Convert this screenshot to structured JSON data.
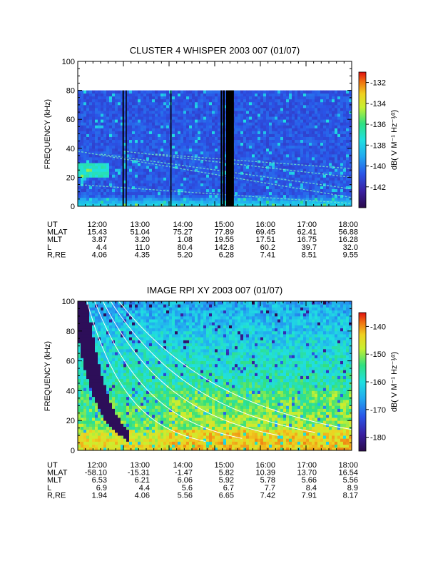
{
  "colors": {
    "background": "#ffffff",
    "axis": "#000000",
    "data_gap": "#000000",
    "colorscale": [
      "#2a0a4a",
      "#3a1fa0",
      "#2a55e8",
      "#22aaf0",
      "#20e0e0",
      "#30e080",
      "#c8f030",
      "#f0d020",
      "#f07010",
      "#e01010"
    ]
  },
  "chart_data": [
    {
      "type": "heatmap",
      "title": "CLUSTER 4 WHISPER 2003 007 (01/07)",
      "xlabel": "",
      "ylabel": "FREQUENCY (kHz)",
      "x_range": [
        "12:00",
        "18:00"
      ],
      "xlim_hours": [
        12,
        18
      ],
      "ylim": [
        0,
        100
      ],
      "y_ticks": [
        0,
        20,
        40,
        60,
        80,
        100
      ],
      "y_tick_labels": [
        "0",
        "20",
        "40",
        "60",
        "80",
        "100"
      ],
      "x_tick_labels": [
        "12:00",
        "13:00",
        "14:00",
        "15:00",
        "16:00",
        "17:00",
        "18:00"
      ],
      "data_max_frequency": 80,
      "colorbar": {
        "label": "dB( V M⁻¹ Hz⁻¹⁄²)",
        "range": [
          -144,
          -131
        ],
        "ticks": [
          -132,
          -134,
          -136,
          -138,
          -140,
          -142
        ],
        "tick_labels": [
          "-132",
          "-134",
          "-136",
          "-138",
          "-140",
          "-142"
        ]
      },
      "data_gaps_hours": [
        [
          12.98,
          13.01
        ],
        [
          13.05,
          13.07
        ],
        [
          14.03,
          14.05
        ],
        [
          15.13,
          15.16
        ],
        [
          15.18,
          15.22
        ],
        [
          15.25,
          15.42
        ]
      ],
      "emission_lines": [
        {
          "from": [
            12.0,
            15
          ],
          "to": [
            18.0,
            2
          ]
        },
        {
          "from": [
            12.0,
            38
          ],
          "to": [
            18.0,
            6
          ]
        },
        {
          "from": [
            12.5,
            36
          ],
          "to": [
            18.0,
            12
          ]
        },
        {
          "from": [
            13.0,
            38
          ],
          "to": [
            18.0,
            20
          ]
        },
        {
          "from": [
            13.7,
            36
          ],
          "to": [
            18.0,
            26
          ]
        }
      ],
      "ephemeris": {
        "row_labels": [
          "UT",
          "MLAT",
          "MLT",
          "L",
          "R,RE"
        ],
        "columns": [
          [
            "12:00",
            "15.43",
            "3.87",
            "4.4",
            "4.06"
          ],
          [
            "13:00",
            "51.04",
            "3.20",
            "11.0",
            "4.35"
          ],
          [
            "14:00",
            "75.27",
            "1.08",
            "80.4",
            "5.20"
          ],
          [
            "15:00",
            "77.89",
            "19.55",
            "142.8",
            "6.28"
          ],
          [
            "16:00",
            "69.45",
            "17.51",
            "60.2",
            "7.41"
          ],
          [
            "17:00",
            "62.41",
            "16.75",
            "39.7",
            "8.51"
          ],
          [
            "18:00",
            "56.88",
            "16.28",
            "32.0",
            "9.55"
          ]
        ]
      }
    },
    {
      "type": "heatmap",
      "title": "IMAGE RPI XY 2003 007 (01/07)",
      "xlabel": "",
      "ylabel": "FREQUENCY (kHz)",
      "x_range": [
        "12:00",
        "18:00"
      ],
      "xlim_hours": [
        12,
        18
      ],
      "ylim": [
        0,
        100
      ],
      "y_ticks": [
        0,
        20,
        40,
        60,
        80,
        100
      ],
      "y_tick_labels": [
        "0",
        "20",
        "40",
        "60",
        "80",
        "100"
      ],
      "x_tick_labels": [
        "12:00",
        "13:00",
        "14:00",
        "15:00",
        "16:00",
        "17:00",
        "18:00"
      ],
      "data_max_frequency": 100,
      "colorbar": {
        "label": "dB( V M⁻¹ Hz⁻¹⁄²)",
        "range": [
          -185,
          -135
        ],
        "ticks": [
          -140,
          -150,
          -160,
          -170,
          -180
        ],
        "tick_labels": [
          "-140",
          "-150",
          "-160",
          "-170",
          "-180"
        ]
      },
      "white_curves": [
        {
          "start": [
            12.2,
            100
          ],
          "end": [
            14.8,
            6
          ]
        },
        {
          "start": [
            12.37,
            100
          ],
          "end": [
            15.6,
            8
          ]
        },
        {
          "start": [
            12.55,
            100
          ],
          "end": [
            16.4,
            10
          ]
        },
        {
          "start": [
            12.72,
            100
          ],
          "end": [
            17.2,
            12
          ]
        },
        {
          "start": [
            12.9,
            100
          ],
          "end": [
            18.0,
            14
          ]
        }
      ],
      "ephemeris": {
        "row_labels": [
          "UT",
          "MLAT",
          "MLT",
          "L",
          "R,RE"
        ],
        "columns": [
          [
            "12:00",
            "-58.10",
            "6.53",
            "6.9",
            "1.94"
          ],
          [
            "13:00",
            "-15.31",
            "6.21",
            "4.4",
            "4.06"
          ],
          [
            "14:00",
            "-1.47",
            "6.06",
            "5.6",
            "5.56"
          ],
          [
            "15:00",
            "5.82",
            "5.92",
            "6.7",
            "6.65"
          ],
          [
            "16:00",
            "10.39",
            "5.78",
            "7.7",
            "7.42"
          ],
          [
            "17:00",
            "13.70",
            "5.66",
            "8.4",
            "7.91"
          ],
          [
            "18:00",
            "16.54",
            "5.56",
            "8.9",
            "8.17"
          ]
        ]
      }
    }
  ]
}
